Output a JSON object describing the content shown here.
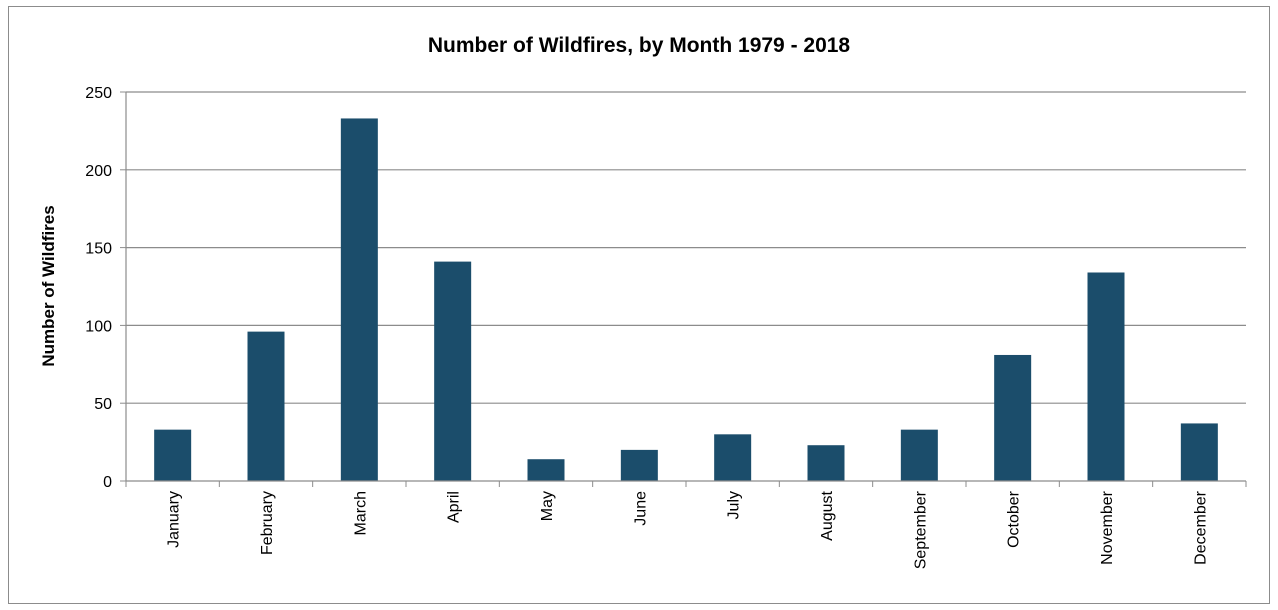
{
  "chart_data": {
    "type": "bar",
    "title": "Number of Wildfires, by Month 1979 - 2018",
    "xlabel": "",
    "ylabel": "Number of Wildfires",
    "categories": [
      "January",
      "February",
      "March",
      "April",
      "May",
      "June",
      "July",
      "August",
      "September",
      "October",
      "November",
      "December"
    ],
    "values": [
      33,
      96,
      233,
      141,
      14,
      20,
      30,
      23,
      33,
      81,
      134,
      37
    ],
    "ylim": [
      0,
      250
    ],
    "yticks": [
      0,
      50,
      100,
      150,
      200,
      250
    ],
    "grid": true,
    "legend": "none",
    "colors": {
      "bar": "#1b4d6b",
      "grid": "#8c8c8c",
      "axis": "#8c8c8c"
    }
  }
}
